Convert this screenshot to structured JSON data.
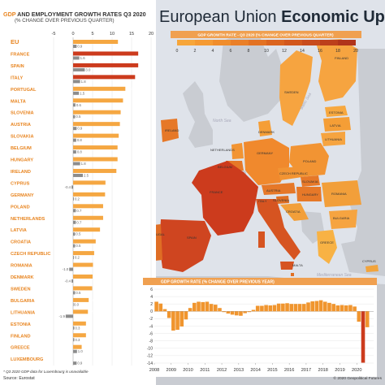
{
  "title_light": "European Union ",
  "title_bold": "Economic Update",
  "left_title_part1": "GDP",
  "left_title_part2": " AND EMPLOYMENT GROWTH RATES Q3 2020",
  "left_subtitle": "(% CHANGE OVER PREVIOUS QUARTER)",
  "legend_title": "GDP GROWTH RATE - Q3 2020 (% CHANGE OVER PREVIOUS QUARTER)",
  "legend_ticks": [
    "0",
    "2",
    "4",
    "6",
    "8",
    "10",
    "12",
    "14",
    "16",
    "18",
    "20"
  ],
  "legend_colors": [
    "#f7a63a",
    "#f59a33",
    "#f08d2c",
    "#ea7f27",
    "#e37223",
    "#db641f",
    "#d2571d",
    "#c84b1c",
    "#bc3f1b",
    "#b0341b"
  ],
  "source": "Source: Eurostat",
  "footnote": "* Q3 2020 GDP data for Luxembourg is unavailable",
  "copyright": "© 2020 Geopolitical Futures",
  "colors": {
    "gdp_bar": "#f5a742",
    "gdp_highlight": "#cc3b1d",
    "gdp_eu": "#f5a742",
    "employment_bar": "#8c8c8c",
    "country_label": "#e8841f",
    "sea": "#dfe3ea",
    "land": "#c9ccd2"
  },
  "chart_data": [
    {
      "type": "bar",
      "orientation": "horizontal",
      "title": "GDP AND EMPLOYMENT GROWTH RATES Q3 2020",
      "subtitle": "(% CHANGE OVER PREVIOUS QUARTER)",
      "xlim": [
        -5,
        20
      ],
      "xticks": [
        "-5",
        "0",
        "5",
        "10",
        "15",
        "20"
      ],
      "categories": [
        "EU",
        "FRANCE",
        "SPAIN",
        "ITALY",
        "PORTUGAL",
        "MALTA",
        "SLOVENIA",
        "AUSTRIA",
        "SLOVAKIA",
        "BELGIUM",
        "HUNGARY",
        "IRELAND",
        "CYPRUS",
        "GERMANY",
        "POLAND",
        "NETHERLANDS",
        "LATVIA",
        "CROATIA",
        "CZECH REPUBLIC",
        "ROMANIA",
        "DENMARK",
        "SWEDEN",
        "BULGARIA",
        "LITHUANIA",
        "ESTONIA",
        "FINLAND",
        "GREECE",
        "LUXEMBOURG"
      ],
      "series": [
        {
          "name": "GDP",
          "values": [
            11.5,
            16.7,
            16.7,
            15.9,
            13.4,
            12.8,
            12.2,
            12.0,
            11.7,
            11.4,
            11.4,
            11.1,
            8.3,
            8.2,
            7.7,
            7.7,
            6.9,
            5.8,
            5.4,
            5.1,
            5.0,
            4.9,
            4.0,
            3.8,
            3.3,
            3.3,
            2.2,
            null
          ]
        },
        {
          "name": "EMPLOYMENT",
          "values": [
            0.9,
            1.6,
            3.0,
            1.8,
            1.5,
            0.6,
            0.5,
            0.9,
            0.8,
            0.8,
            1.8,
            2.5,
            -0.4,
            0.2,
            0.7,
            0.7,
            0.5,
            0.5,
            0.2,
            -1.0,
            -0.4,
            0.5,
            0.0,
            -1.9,
            0.3,
            0.3,
            1.0,
            0.9
          ]
        }
      ],
      "gdp_labels": [
        "11.5",
        "16.7",
        "16.7",
        "15.9",
        "13.4",
        "12.8",
        "12.2",
        "12.0",
        "11.7",
        "11.4",
        "11.4",
        "11.1",
        "8.3",
        "8.2",
        "7.7",
        "7.7",
        "6.9",
        "5.8",
        "5.4",
        "5.1",
        "5.0",
        "4.9",
        "4.0",
        "3.8",
        "3.3",
        "3.3",
        "2.2",
        ""
      ],
      "emp_labels": [
        "0.9",
        "1.6",
        "3.0",
        "1.8",
        "1.5",
        "0.6",
        "0.5",
        "0.9",
        "0.8",
        "0.8",
        "1.8",
        "2.5",
        "-0.4",
        "0.2",
        "0.7",
        "0.7",
        "0.5",
        "0.5",
        "0.2",
        "-1.0",
        "-0.4",
        "0.5",
        "0.0",
        "-1.9",
        "0.3",
        "0.3",
        "1.0",
        "0.9"
      ]
    },
    {
      "type": "bar",
      "title": "GDP GROWTH RATE",
      "subtitle": "(% CHANGE OVER PREVIOUS YEAR)",
      "ylim": [
        -14,
        6
      ],
      "yticks": [
        "6",
        "4",
        "2",
        "0",
        "-2",
        "-4",
        "-6",
        "-8",
        "-10",
        "-12",
        "-14"
      ],
      "xticks": [
        "2008",
        "2009",
        "2010",
        "2011",
        "2012",
        "2013",
        "2014",
        "2015",
        "2016",
        "2017",
        "2018",
        "2019",
        "2020"
      ],
      "quarters_start": "2008 Q1",
      "values": [
        2.6,
        2.1,
        0.6,
        -1.8,
        -5.2,
        -5.0,
        -4.1,
        -2.2,
        0.9,
        2.3,
        2.6,
        2.5,
        2.6,
        2.0,
        1.8,
        0.9,
        -0.2,
        -0.6,
        -0.9,
        -1.1,
        -1.2,
        -0.5,
        -0.2,
        0.4,
        1.5,
        1.5,
        1.7,
        1.6,
        1.7,
        2.1,
        2.1,
        2.2,
        2.0,
        2.0,
        2.0,
        2.0,
        2.4,
        2.7,
        2.8,
        3.0,
        2.6,
        2.3,
        2.0,
        1.6,
        1.7,
        1.6,
        1.7,
        1.3,
        -2.8,
        -13.9,
        -4.3
      ]
    }
  ],
  "map": {
    "countries": [
      "FINLAND",
      "SWEDEN",
      "ESTONIA",
      "LATVIA",
      "LITHUANIA",
      "POLAND",
      "GERMANY",
      "NETHERLANDS",
      "BELGIUM",
      "LUXEMBOURG",
      "IRELAND",
      "FRANCE",
      "CZECH REPUBLIC",
      "SLOVAKIA",
      "AUSTRIA",
      "HUNGARY",
      "SLOVENIA",
      "CROATIA",
      "ROMANIA",
      "BULGARIA",
      "ITALY",
      "SPAIN",
      "PORTUGAL",
      "GREECE",
      "MALTA",
      "CYPRUS",
      "DENMARK"
    ],
    "seas": [
      "North Sea",
      "Baltic Sea",
      "Mediterranean Sea"
    ]
  }
}
